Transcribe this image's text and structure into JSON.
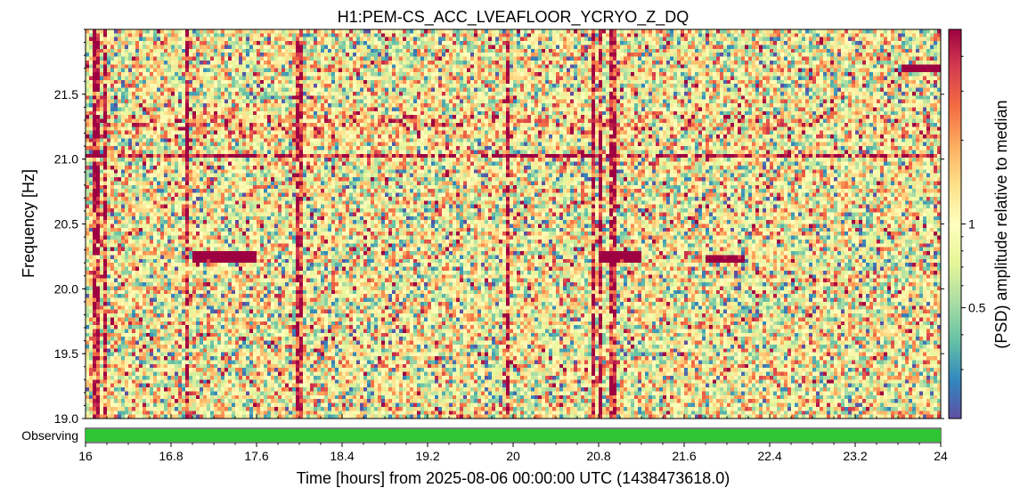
{
  "chart_data": {
    "type": "heatmap",
    "title": "H1:PEM-CS_ACC_LVEAFLOOR_YCRYO_Z_DQ",
    "xlabel": "Time [hours] from 2025-08-06 00:00:00 UTC (1438473618.0)",
    "ylabel": "Frequency [Hz]",
    "colorbar_label": "(PSD) amplitude relative to median",
    "xlim": [
      16,
      24
    ],
    "ylim": [
      19.0,
      22.0
    ],
    "x_ticks": [
      "16",
      "16.8",
      "17.6",
      "18.4",
      "19.2",
      "20",
      "20.8",
      "21.6",
      "22.4",
      "23.2",
      "24"
    ],
    "x_tick_values": [
      16,
      16.8,
      17.6,
      18.4,
      19.2,
      20,
      20.8,
      21.6,
      22.4,
      23.2,
      24
    ],
    "y_ticks": [
      "19.0",
      "19.5",
      "20.0",
      "20.5",
      "21.0",
      "21.5"
    ],
    "y_tick_values": [
      19.0,
      19.5,
      20.0,
      20.5,
      21.0,
      21.5
    ],
    "colorbar_ticks": [
      "1",
      "0.5"
    ],
    "colorbar_tick_values": [
      1,
      0.5
    ],
    "colorbar_range": [
      0.2,
      5
    ],
    "colorbar_scale": "log",
    "colormap": [
      "#5e4fa2",
      "#3288bd",
      "#66c2a5",
      "#abdda4",
      "#e6f598",
      "#ffffbf",
      "#fee08b",
      "#fdae61",
      "#f46d43",
      "#d53e4f",
      "#9e0142"
    ],
    "features": {
      "vertical_lines_hours": [
        16.1,
        16.18,
        16.95,
        18.0,
        19.95,
        20.75,
        20.82,
        20.93
      ],
      "horizontal_line_hz": 21.02,
      "bright_band_hz": [
        21.15,
        21.35
      ],
      "blobs": [
        {
          "t_start": 17.0,
          "t_end": 17.6,
          "f": 20.24
        },
        {
          "t_start": 20.85,
          "t_end": 21.2,
          "f": 20.25
        },
        {
          "t_start": 21.8,
          "t_end": 22.15,
          "f": 20.23
        },
        {
          "t_start": 23.65,
          "t_end": 24.0,
          "f": 21.7
        }
      ]
    },
    "grid": false,
    "segment_bar": {
      "label": "Observing",
      "color": "#2ec535",
      "segments": [
        [
          16,
          24
        ]
      ]
    }
  }
}
